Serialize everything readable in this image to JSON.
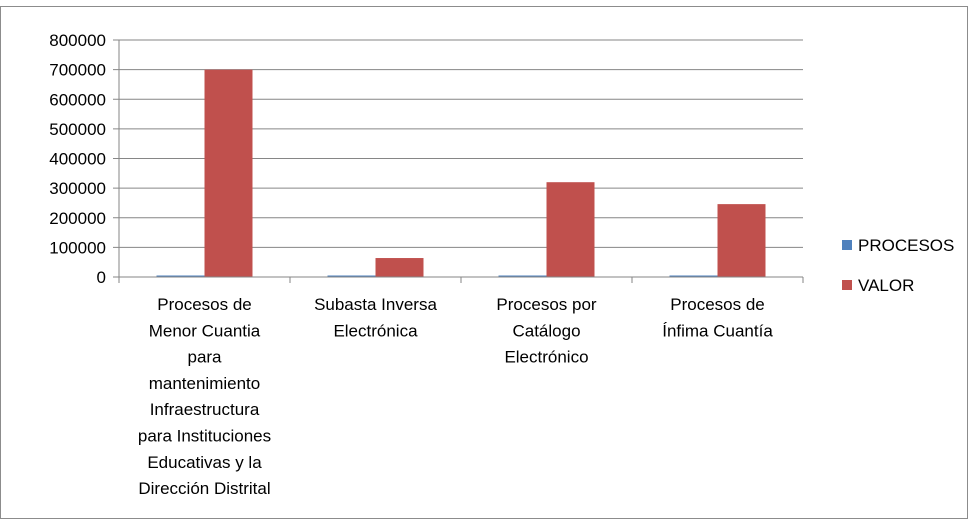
{
  "chart_data": {
    "type": "bar",
    "categories": [
      [
        "Procesos de",
        "Menor Cuantia",
        "para",
        "mantenimiento",
        "Infraestructura",
        "para Instituciones",
        "Educativas y la",
        "Dirección Distrital"
      ],
      [
        "Subasta Inversa",
        "Electrónica"
      ],
      [
        "Procesos por",
        "Catálogo",
        "Electrónico"
      ],
      [
        "Procesos de",
        "Ínfima Cuantía"
      ]
    ],
    "series": [
      {
        "name": "PROCESOS",
        "values": [
          3,
          2,
          4,
          3
        ],
        "color": "#4f81bd"
      },
      {
        "name": "VALOR",
        "values": [
          700000,
          64000,
          320000,
          246000
        ],
        "color": "#c0504d"
      }
    ],
    "ylim": [
      0,
      800000
    ],
    "yticks": [
      "0",
      "100000",
      "200000",
      "300000",
      "400000",
      "500000",
      "600000",
      "700000",
      "800000"
    ],
    "grid": true,
    "legend_position": "right"
  }
}
